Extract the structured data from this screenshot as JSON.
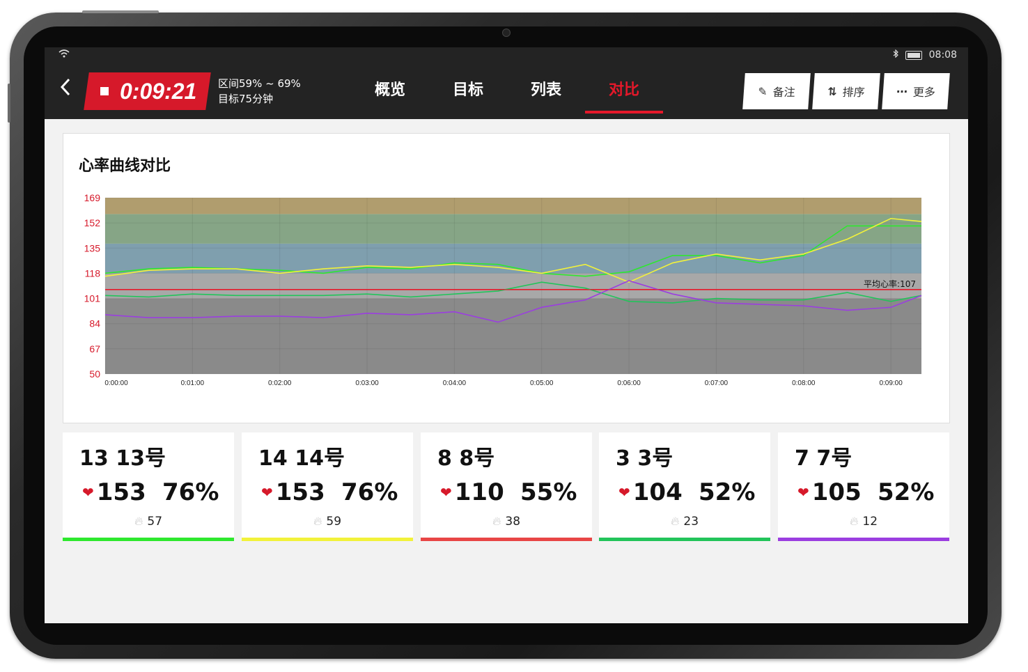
{
  "status": {
    "wifi_icon": "wifi-icon",
    "time": "08:08"
  },
  "header": {
    "timer": "0:09:21",
    "zone_range": "区间59% ~ 69%",
    "zone_target": "目标75分钟",
    "tabs": [
      {
        "label": "概览",
        "active": false
      },
      {
        "label": "目标",
        "active": false
      },
      {
        "label": "列表",
        "active": false
      },
      {
        "label": "对比",
        "active": true
      }
    ],
    "actions": [
      {
        "label": "备注",
        "icon": "note-icon"
      },
      {
        "label": "排序",
        "icon": "sort-icon"
      },
      {
        "label": "更多",
        "icon": "more-icon"
      }
    ]
  },
  "chart_title": "心率曲线对比",
  "chart_data": {
    "type": "line",
    "ylim": [
      50,
      169
    ],
    "yticks": [
      "169",
      "152",
      "135",
      "118",
      "101",
      "84",
      "67",
      "50"
    ],
    "xticks": [
      "0:00:00",
      "0:01:00",
      "0:02:00",
      "0:03:00",
      "0:04:00",
      "0:05:00",
      "0:06:00",
      "0:07:00",
      "0:08:00",
      "0:09:00"
    ],
    "x_range_seconds": [
      0,
      561
    ],
    "zones": [
      {
        "from": 50,
        "to": 101,
        "color": "#8a8a8a"
      },
      {
        "from": 101,
        "to": 118,
        "color": "#a8a8a8"
      },
      {
        "from": 118,
        "to": 138,
        "color": "#7f9fae"
      },
      {
        "from": 138,
        "to": 158,
        "color": "#86a586"
      },
      {
        "from": 158,
        "to": 169,
        "color": "#b09d6e"
      }
    ],
    "average_line": {
      "value": 107,
      "label": "平均心率:107",
      "color": "#e5182a"
    },
    "series": [
      {
        "name": "13 13号",
        "color": "#2ee82e",
        "x": [
          0,
          30,
          60,
          90,
          120,
          150,
          180,
          210,
          240,
          270,
          300,
          330,
          360,
          390,
          420,
          450,
          480,
          510,
          561
        ],
        "y": [
          118,
          121,
          122,
          121,
          120,
          118,
          122,
          121,
          125,
          124,
          118,
          116,
          119,
          130,
          130,
          125,
          130,
          150,
          150
        ]
      },
      {
        "name": "14 14号",
        "color": "#f2f23a",
        "x": [
          0,
          30,
          60,
          90,
          120,
          150,
          180,
          210,
          240,
          270,
          300,
          330,
          360,
          390,
          420,
          450,
          480,
          510,
          540,
          561
        ],
        "y": [
          116,
          120,
          121,
          121,
          118,
          121,
          123,
          122,
          124,
          122,
          118,
          124,
          112,
          125,
          131,
          127,
          131,
          141,
          155,
          153
        ]
      },
      {
        "name": "8 8号",
        "color": "#e5182a",
        "x": [
          0,
          561
        ],
        "y": [
          107,
          107
        ]
      },
      {
        "name": "3 3号",
        "color": "#22c45a",
        "x": [
          0,
          30,
          60,
          90,
          120,
          150,
          180,
          210,
          240,
          270,
          300,
          330,
          360,
          390,
          420,
          450,
          480,
          510,
          540,
          561
        ],
        "y": [
          103,
          102,
          104,
          103,
          103,
          103,
          104,
          102,
          104,
          106,
          112,
          108,
          99,
          98,
          101,
          100,
          100,
          105,
          99,
          103
        ]
      },
      {
        "name": "7 7号",
        "color": "#9b3ee0",
        "x": [
          0,
          30,
          60,
          90,
          120,
          150,
          180,
          210,
          240,
          270,
          300,
          330,
          360,
          390,
          420,
          450,
          480,
          510,
          540,
          561
        ],
        "y": [
          90,
          88,
          88,
          89,
          89,
          88,
          91,
          90,
          92,
          85,
          95,
          100,
          113,
          104,
          98,
          97,
          96,
          93,
          95,
          103
        ]
      }
    ]
  },
  "cards": [
    {
      "name": "13 13号",
      "hr": "153",
      "pct": "76%",
      "cal": "57",
      "color": "#2ee82e"
    },
    {
      "name": "14 14号",
      "hr": "153",
      "pct": "76%",
      "cal": "59",
      "color": "#f2f23a"
    },
    {
      "name": "8 8号",
      "hr": "110",
      "pct": "55%",
      "cal": "38",
      "color": "#e84545"
    },
    {
      "name": "3 3号",
      "hr": "104",
      "pct": "52%",
      "cal": "23",
      "color": "#22c45a"
    },
    {
      "name": "7 7号",
      "hr": "105",
      "pct": "52%",
      "cal": "12",
      "color": "#9b3ee0"
    }
  ]
}
